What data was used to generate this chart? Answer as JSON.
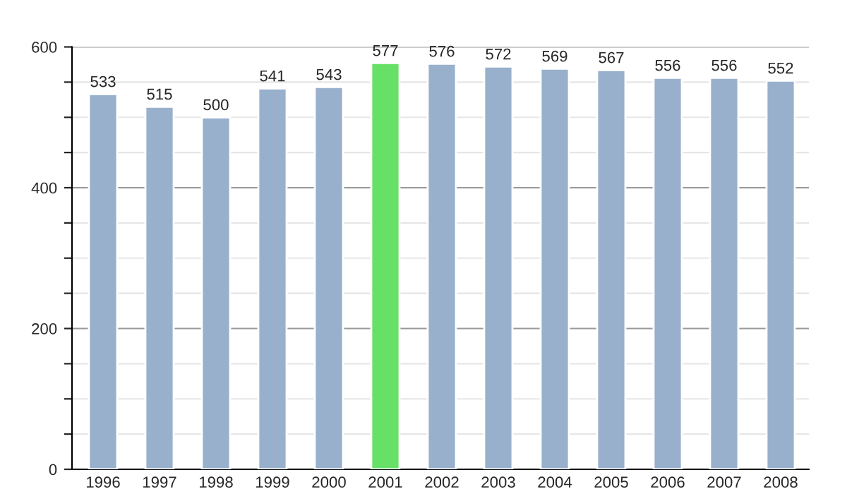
{
  "chart_data": {
    "type": "bar",
    "categories": [
      "1996",
      "1997",
      "1998",
      "1999",
      "2000",
      "2001",
      "2002",
      "2003",
      "2004",
      "2005",
      "2006",
      "2007",
      "2008"
    ],
    "values": [
      533,
      515,
      500,
      541,
      543,
      577,
      576,
      572,
      569,
      567,
      556,
      556,
      552
    ],
    "colors": [
      "#98b0cc",
      "#98b0cc",
      "#98b0cc",
      "#98b0cc",
      "#98b0cc",
      "#66e066",
      "#98b0cc",
      "#98b0cc",
      "#98b0cc",
      "#98b0cc",
      "#98b0cc",
      "#98b0cc",
      "#98b0cc"
    ],
    "ylim": [
      0,
      600
    ],
    "yticks": [
      0,
      {
        "value": 50,
        "label": null
      },
      {
        "value": 100,
        "label": null
      },
      {
        "value": 150,
        "label": null
      },
      200,
      {
        "value": 250,
        "label": null
      },
      {
        "value": 300,
        "label": null
      },
      {
        "value": 350,
        "label": null
      },
      400,
      {
        "value": 450,
        "label": null
      },
      {
        "value": 500,
        "label": null
      },
      {
        "value": 550,
        "label": null
      },
      600
    ],
    "grid": "y",
    "data_labels": true
  }
}
